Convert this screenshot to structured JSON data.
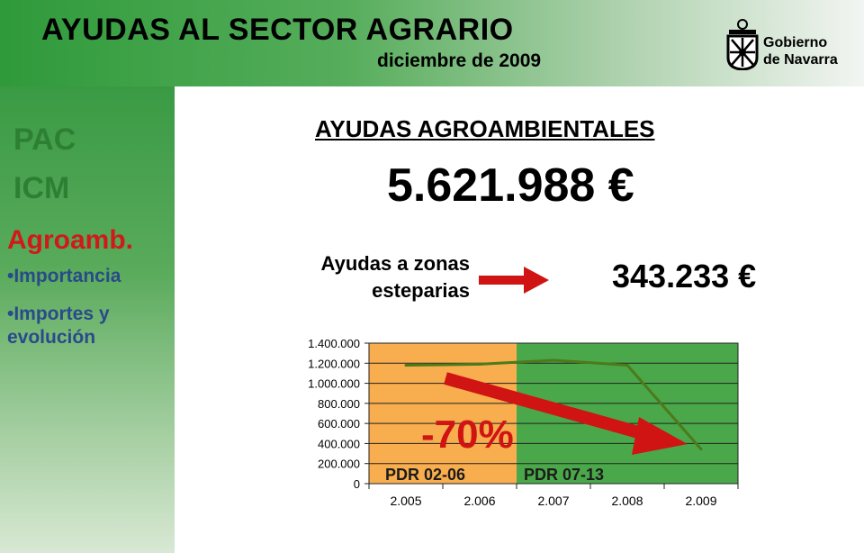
{
  "header": {
    "title": "AYUDAS AL SECTOR AGRARIO",
    "date": "diciembre de 2009",
    "logo_text_line1": "Gobierno",
    "logo_text_line2": "de Navarra"
  },
  "sidebar": {
    "items": [
      {
        "label": "PAC",
        "color": "#2d8033"
      },
      {
        "label": "ICM",
        "color": "#2d8033"
      },
      {
        "label": "Agroamb.",
        "color": "#d01a1a"
      }
    ],
    "subitems": [
      {
        "label": "•Importancia"
      },
      {
        "label_line1": "•Importes y",
        "label_line2": "evolución"
      }
    ]
  },
  "main": {
    "section_title": "AYUDAS AGROAMBIENTALES",
    "total_amount": "5.621.988 €",
    "zone_label_line1": "Ayudas a zonas",
    "zone_label_line2": "esteparias",
    "zone_amount": "343.233 €"
  },
  "chart_data": {
    "type": "line",
    "x": [
      "2.005",
      "2.006",
      "2.007",
      "2.008",
      "2.009"
    ],
    "values": [
      1180000,
      1190000,
      1230000,
      1180000,
      343233
    ],
    "ylim": [
      0,
      1400000
    ],
    "yticks": [
      "0",
      "200.000",
      "400.000",
      "600.000",
      "800.000",
      "1.000.000",
      "1.200.000",
      "1.400.000"
    ],
    "grid": true,
    "regions": [
      {
        "label": "PDR 02-06",
        "color": "#f8ad4e"
      },
      {
        "label": "PDR 07-13",
        "color": "#4aa84a"
      }
    ],
    "annotation": "-70%",
    "line_color": "#4d7a1a",
    "arrow_color": "#d01414"
  }
}
